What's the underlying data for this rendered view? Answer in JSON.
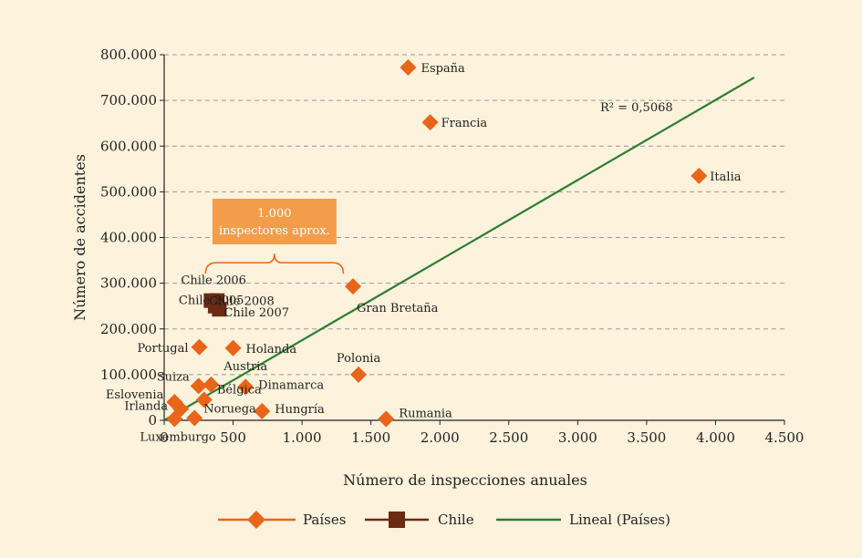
{
  "chart_data": {
    "type": "scatter",
    "xlabel": "Número de inspecciones anuales",
    "ylabel": "Número de accidentes",
    "xlim": [
      0,
      4500
    ],
    "ylim": [
      0,
      800000
    ],
    "x_ticks": [
      0,
      500,
      1000,
      1500,
      2000,
      2500,
      3000,
      3500,
      4000,
      4500
    ],
    "x_tick_labels": [
      "0",
      "500",
      "1.000",
      "1.500",
      "2.000",
      "2.500",
      "3.000",
      "3.500",
      "4.000",
      "4.500"
    ],
    "y_ticks": [
      0,
      100000,
      200000,
      300000,
      400000,
      500000,
      600000,
      700000,
      800000
    ],
    "y_tick_labels": [
      "0",
      "100.000",
      "200.000",
      "300.000",
      "400.000",
      "500.000",
      "600.000",
      "700.000",
      "800.000"
    ],
    "grid": "horizontal dashed",
    "legend_position": "bottom",
    "colors": {
      "paises": "#e8651a",
      "chile": "#6b2a12",
      "lineal": "#2e7d32",
      "callout": "#f39c4a",
      "brace": "#e8651a"
    },
    "series": [
      {
        "name": "Países",
        "marker": "diamond",
        "points": [
          {
            "label": "España",
            "x": 1770,
            "y": 772000
          },
          {
            "label": "Francia",
            "x": 1930,
            "y": 652000
          },
          {
            "label": "Italia",
            "x": 3880,
            "y": 535000
          },
          {
            "label": "Gran Bretaña",
            "x": 1370,
            "y": 293000
          },
          {
            "label": "Portugal",
            "x": 255,
            "y": 160000
          },
          {
            "label": "Holanda",
            "x": 500,
            "y": 158000
          },
          {
            "label": "Polonia",
            "x": 1410,
            "y": 100000
          },
          {
            "label": "Austria",
            "x": 340,
            "y": 78000
          },
          {
            "label": "Suiza",
            "x": 250,
            "y": 75000
          },
          {
            "label": "Dinamarca",
            "x": 590,
            "y": 73000
          },
          {
            "label": "Bélgica",
            "x": 290,
            "y": 45000
          },
          {
            "label": "Eslovenia",
            "x": 75,
            "y": 40000
          },
          {
            "label": "Irlanda",
            "x": 120,
            "y": 25000
          },
          {
            "label": "Hungría",
            "x": 710,
            "y": 20000
          },
          {
            "label": "Noruega",
            "x": 220,
            "y": 5000
          },
          {
            "label": "Luxemburgo",
            "x": 75,
            "y": 3000
          },
          {
            "label": "Rumania",
            "x": 1610,
            "y": 3000
          }
        ]
      },
      {
        "name": "Chile",
        "marker": "square",
        "points": [
          {
            "label": "Chile 2006",
            "x": 340,
            "y": 262000
          },
          {
            "label": "Chile 2008",
            "x": 385,
            "y": 262000
          },
          {
            "label": "Chile 2007",
            "x": 400,
            "y": 243000
          },
          {
            "label": "Chile 2005",
            "x": 370,
            "y": 250000
          }
        ]
      },
      {
        "name": "Lineal (Países)",
        "type": "line",
        "points": [
          {
            "x": 0,
            "y": 0
          },
          {
            "x": 4280,
            "y": 750000
          }
        ]
      }
    ],
    "annotations": {
      "r_squared": "R² = 0,5068",
      "callout_line1": "1.000",
      "callout_line2": "inspectores aprox.",
      "brace_x_range": [
        300,
        1300
      ],
      "brace_y": 345000
    }
  }
}
